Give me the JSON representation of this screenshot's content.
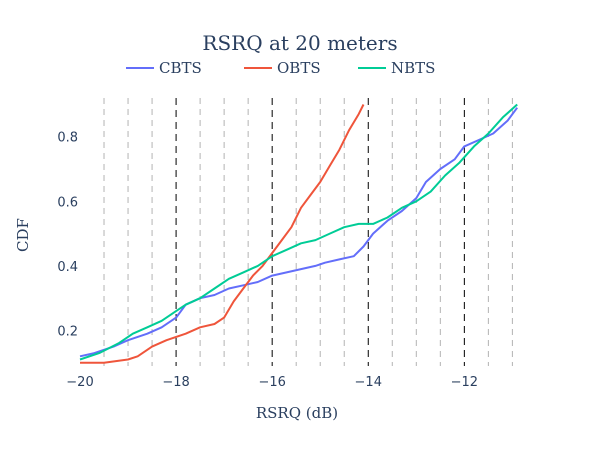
{
  "chart_data": {
    "type": "line",
    "title": "RSRQ at 20 meters",
    "xlabel": "RSRQ (dB)",
    "ylabel": "CDF",
    "xlim": [
      -20,
      -10.8
    ],
    "ylim": [
      0.09,
      0.92
    ],
    "x_ticks": [
      -20,
      -18,
      -16,
      -14,
      -12
    ],
    "x_tick_labels": [
      "−20",
      "−18",
      "−16",
      "−14",
      "−12"
    ],
    "y_ticks": [
      0.2,
      0.4,
      0.6,
      0.8
    ],
    "y_tick_labels": [
      "0.2",
      "0.4",
      "0.6",
      "0.8"
    ],
    "grid_major_x": [
      -18,
      -16,
      -14,
      -12
    ],
    "grid_minor_x": [
      -19.5,
      -19,
      -18.5,
      -17.5,
      -17,
      -16.5,
      -15.5,
      -15,
      -14.5,
      -13.5,
      -13,
      -12.5,
      -11.5,
      -11
    ],
    "legend_position": "top",
    "series": [
      {
        "name": "CBTS",
        "color": "#636efa",
        "x": [
          -20,
          -19.7,
          -19.3,
          -19.0,
          -18.6,
          -18.3,
          -18.0,
          -17.8,
          -17.5,
          -17.2,
          -16.9,
          -16.6,
          -16.3,
          -16.0,
          -15.7,
          -15.4,
          -15.1,
          -14.9,
          -14.6,
          -14.3,
          -14.1,
          -13.9,
          -13.6,
          -13.3,
          -13.0,
          -12.8,
          -12.5,
          -12.2,
          -12.0,
          -11.7,
          -11.4,
          -11.1,
          -10.9
        ],
        "y": [
          0.12,
          0.13,
          0.15,
          0.17,
          0.19,
          0.21,
          0.24,
          0.28,
          0.3,
          0.31,
          0.33,
          0.34,
          0.35,
          0.37,
          0.38,
          0.39,
          0.4,
          0.41,
          0.42,
          0.43,
          0.46,
          0.5,
          0.54,
          0.57,
          0.61,
          0.66,
          0.7,
          0.73,
          0.77,
          0.79,
          0.81,
          0.85,
          0.89
        ]
      },
      {
        "name": "OBTS",
        "color": "#ef553b",
        "x": [
          -20,
          -19.5,
          -19.0,
          -18.8,
          -18.5,
          -18.2,
          -18.0,
          -17.8,
          -17.5,
          -17.2,
          -17.0,
          -16.8,
          -16.6,
          -16.4,
          -16.2,
          -16.0,
          -15.8,
          -15.6,
          -15.4,
          -15.2,
          -15.0,
          -14.8,
          -14.6,
          -14.4,
          -14.2,
          -14.1
        ],
        "y": [
          0.1,
          0.1,
          0.11,
          0.12,
          0.15,
          0.17,
          0.18,
          0.19,
          0.21,
          0.22,
          0.24,
          0.29,
          0.33,
          0.37,
          0.4,
          0.44,
          0.48,
          0.52,
          0.58,
          0.62,
          0.66,
          0.71,
          0.76,
          0.82,
          0.87,
          0.9
        ]
      },
      {
        "name": "NBTS",
        "color": "#00cc96",
        "x": [
          -20,
          -19.6,
          -19.2,
          -18.9,
          -18.6,
          -18.3,
          -18.0,
          -17.8,
          -17.5,
          -17.2,
          -16.9,
          -16.6,
          -16.3,
          -16.0,
          -15.7,
          -15.4,
          -15.1,
          -14.8,
          -14.5,
          -14.2,
          -13.9,
          -13.6,
          -13.3,
          -13.0,
          -12.7,
          -12.4,
          -12.1,
          -11.8,
          -11.5,
          -11.2,
          -10.9
        ],
        "y": [
          0.11,
          0.13,
          0.16,
          0.19,
          0.21,
          0.23,
          0.26,
          0.28,
          0.3,
          0.33,
          0.36,
          0.38,
          0.4,
          0.43,
          0.45,
          0.47,
          0.48,
          0.5,
          0.52,
          0.53,
          0.53,
          0.55,
          0.58,
          0.6,
          0.63,
          0.68,
          0.72,
          0.77,
          0.81,
          0.86,
          0.9
        ]
      }
    ]
  }
}
